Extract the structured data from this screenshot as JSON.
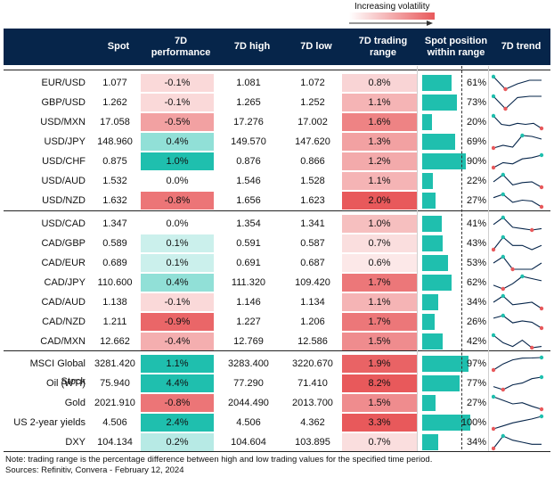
{
  "volatility_label": "Increasing volatility",
  "headers": [
    "Spot",
    "7D performance",
    "7D high",
    "7D low",
    "7D trading range",
    "Spot position within range",
    "7D trend"
  ],
  "notes": {
    "line1": "Note: trading range is the percentage difference between high and low trading values for the specified time period.",
    "line2": "Sources: Refinitiv, Convera - February 12, 2024"
  },
  "colors": {
    "header_bg": "#06254a",
    "teal": "#1fbfae",
    "red": "#e8595b",
    "sparkline": "#06254a"
  },
  "chart_data": {
    "type": "table",
    "groups": [
      {
        "rows": [
          {
            "name": "EUR/USD",
            "spot": "1.077",
            "perf": "-0.1%",
            "high": "1.081",
            "low": "1.072",
            "range": "0.8%",
            "position": "61%",
            "perf_v": -0.1,
            "range_v": 0.8,
            "pos_v": 61,
            "trend": [
              1.08,
              1.073,
              1.076,
              1.078,
              1.078
            ]
          },
          {
            "name": "GBP/USD",
            "spot": "1.262",
            "perf": "-0.1%",
            "high": "1.265",
            "low": "1.252",
            "range": "1.1%",
            "position": "73%",
            "perf_v": -0.1,
            "range_v": 1.1,
            "pos_v": 73,
            "trend": [
              1.263,
              1.253,
              1.262,
              1.263,
              1.263
            ]
          },
          {
            "name": "USD/MXN",
            "spot": "17.058",
            "perf": "-0.5%",
            "high": "17.276",
            "low": "17.002",
            "range": "1.6%",
            "position": "20%",
            "perf_v": -0.5,
            "range_v": 1.6,
            "pos_v": 20,
            "trend": [
              17.25,
              17.1,
              17.08,
              17.12,
              17.1,
              17.12,
              17.03
            ]
          },
          {
            "name": "USD/JPY",
            "spot": "148.960",
            "perf": "0.4%",
            "high": "149.570",
            "low": "147.620",
            "range": "1.3%",
            "position": "69%",
            "perf_v": 0.4,
            "range_v": 1.3,
            "pos_v": 69,
            "trend": [
              147.9,
              148.2,
              148.0,
              149.3,
              149.2,
              148.9
            ]
          },
          {
            "name": "USD/CHF",
            "spot": "0.875",
            "perf": "1.0%",
            "high": "0.876",
            "low": "0.866",
            "range": "1.2%",
            "position": "90%",
            "perf_v": 1.0,
            "range_v": 1.2,
            "pos_v": 90,
            "trend": [
              0.866,
              0.87,
              0.869,
              0.873,
              0.874,
              0.876
            ]
          },
          {
            "name": "USD/AUD",
            "spot": "1.532",
            "perf": "0.0%",
            "high": "1.546",
            "low": "1.528",
            "range": "1.1%",
            "position": "22%",
            "perf_v": 0.0,
            "range_v": 1.1,
            "pos_v": 22,
            "trend": [
              1.536,
              1.545,
              1.532,
              1.535,
              1.536,
              1.529
            ]
          },
          {
            "name": "USD/NZD",
            "spot": "1.632",
            "perf": "-0.8%",
            "high": "1.656",
            "low": "1.623",
            "range": "2.0%",
            "position": "27%",
            "perf_v": -0.8,
            "range_v": 2.0,
            "pos_v": 27,
            "trend": [
              1.646,
              1.654,
              1.635,
              1.64,
              1.638,
              1.624
            ]
          }
        ]
      },
      {
        "rows": [
          {
            "name": "USD/CAD",
            "spot": "1.347",
            "perf": "0.0%",
            "high": "1.354",
            "low": "1.341",
            "range": "1.0%",
            "position": "41%",
            "perf_v": 0.0,
            "range_v": 1.0,
            "pos_v": 41,
            "trend": [
              1.348,
              1.353,
              1.346,
              1.345,
              1.344,
              1.345
            ]
          },
          {
            "name": "CAD/GBP",
            "spot": "0.589",
            "perf": "0.1%",
            "high": "0.591",
            "low": "0.587",
            "range": "0.7%",
            "position": "43%",
            "perf_v": 0.1,
            "range_v": 0.7,
            "pos_v": 43,
            "trend": [
              0.588,
              0.591,
              0.589,
              0.589,
              0.588,
              0.589
            ]
          },
          {
            "name": "CAD/EUR",
            "spot": "0.689",
            "perf": "0.1%",
            "high": "0.691",
            "low": "0.687",
            "range": "0.6%",
            "position": "53%",
            "perf_v": 0.1,
            "range_v": 0.6,
            "pos_v": 53,
            "trend": [
              0.689,
              0.69,
              0.688,
              0.688,
              0.688,
              0.689
            ]
          },
          {
            "name": "CAD/JPY",
            "spot": "110.600",
            "perf": "0.4%",
            "high": "111.320",
            "low": "109.420",
            "range": "1.7%",
            "position": "62%",
            "perf_v": 0.4,
            "range_v": 1.7,
            "pos_v": 62,
            "trend": [
              110.0,
              109.5,
              110.2,
              111.2,
              110.9,
              110.6
            ]
          },
          {
            "name": "CAD/AUD",
            "spot": "1.138",
            "perf": "-0.1%",
            "high": "1.146",
            "low": "1.134",
            "range": "1.1%",
            "position": "34%",
            "perf_v": -0.1,
            "range_v": 1.1,
            "pos_v": 34,
            "trend": [
              1.14,
              1.145,
              1.138,
              1.139,
              1.14,
              1.135
            ]
          },
          {
            "name": "CAD/NZD",
            "spot": "1.211",
            "perf": "-0.9%",
            "high": "1.227",
            "low": "1.206",
            "range": "1.7%",
            "position": "26%",
            "perf_v": -0.9,
            "range_v": 1.7,
            "pos_v": 26,
            "trend": [
              1.222,
              1.226,
              1.215,
              1.218,
              1.216,
              1.207
            ]
          },
          {
            "name": "CAD/MXN",
            "spot": "12.662",
            "perf": "-0.4%",
            "high": "12.769",
            "low": "12.586",
            "range": "1.5%",
            "position": "42%",
            "perf_v": -0.4,
            "range_v": 1.5,
            "pos_v": 42,
            "trend": [
              12.76,
              12.7,
              12.67,
              12.72,
              12.66,
              12.67
            ]
          }
        ]
      },
      {
        "rows": [
          {
            "name": "MSCI Global Stock",
            "spot": "3281.420",
            "perf": "1.1%",
            "high": "3283.400",
            "low": "3220.670",
            "range": "1.9%",
            "position": "97%",
            "perf_v": 1.1,
            "range_v": 1.9,
            "pos_v": 97,
            "trend": [
              3221,
              3250,
              3270,
              3278,
              3279,
              3281
            ]
          },
          {
            "name": "Oil (WTI)",
            "spot": "75.940",
            "perf": "4.4%",
            "high": "77.290",
            "low": "71.410",
            "range": "8.2%",
            "position": "77%",
            "perf_v": 4.4,
            "range_v": 8.2,
            "pos_v": 77,
            "trend": [
              72.8,
              71.6,
              73.5,
              74.2,
              75.9,
              76.5
            ]
          },
          {
            "name": "Gold",
            "spot": "2021.910",
            "perf": "-0.8%",
            "high": "2044.490",
            "low": "2013.700",
            "range": "1.5%",
            "position": "27%",
            "perf_v": -0.8,
            "range_v": 1.5,
            "pos_v": 27,
            "trend": [
              2042,
              2036,
              2030,
              2032,
              2026,
              2021
            ]
          },
          {
            "name": "US 2-year yields",
            "spot": "4.506",
            "perf": "2.4%",
            "high": "4.506",
            "low": "4.362",
            "range": "3.3%",
            "position": "100%",
            "perf_v": 2.4,
            "range_v": 3.3,
            "pos_v": 100,
            "trend": [
              4.38,
              4.41,
              4.44,
              4.46,
              4.48,
              4.506
            ]
          },
          {
            "name": "DXY",
            "spot": "104.134",
            "perf": "0.2%",
            "high": "104.604",
            "low": "103.895",
            "range": "0.7%",
            "position": "34%",
            "perf_v": 0.2,
            "range_v": 0.7,
            "pos_v": 34,
            "trend": [
              103.9,
              104.5,
              104.3,
              104.2,
              104.1,
              104.1
            ]
          }
        ]
      }
    ]
  }
}
